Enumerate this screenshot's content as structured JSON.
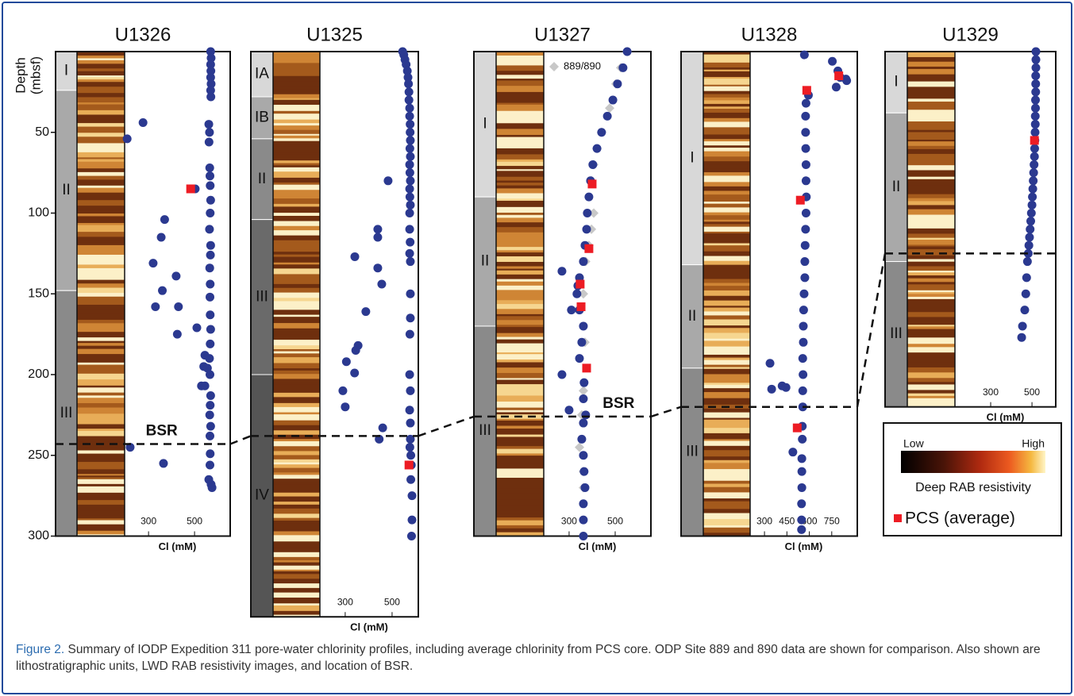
{
  "chart_data": [
    {
      "type": "scatter",
      "title": "U1326",
      "y_label_top": "Depth",
      "y_label_bottom": "(mbsf)",
      "x_label": "Cl (mM)",
      "xlim": [
        196,
        655
      ],
      "xticks": [
        300,
        500
      ],
      "ylim": [
        0,
        300
      ],
      "yticks": [
        50,
        100,
        150,
        200,
        250,
        300
      ],
      "units": [
        {
          "label": "I",
          "top": 0,
          "bottom": 24
        },
        {
          "label": "II",
          "top": 24,
          "bottom": 148
        },
        {
          "label": "III",
          "top": 148,
          "bottom": 300
        }
      ],
      "bsr_depth": 243,
      "bsr_label": "BSR",
      "series": [
        {
          "color": "#2b3990",
          "marker": "circle",
          "x": [
            570,
            572,
            570,
            571,
            570,
            572,
            570,
            571,
            276,
            207,
            562,
            565,
            563,
            566,
            567,
            568,
            503,
            570,
            568,
            370,
            565,
            355,
            570,
            569,
            320,
            566,
            420,
            568,
            360,
            567,
            330,
            430,
            568,
            510,
            570,
            425,
            568,
            545,
            565,
            540,
            556,
            567,
            530,
            545,
            570,
            568,
            566,
            570,
            567,
            220,
            568,
            365,
            567,
            562,
            572,
            576
          ],
          "values": [
            0,
            4,
            8,
            12,
            16,
            20,
            24,
            28,
            44,
            54,
            45,
            50,
            56,
            72,
            77,
            83,
            85,
            92,
            100,
            104,
            110,
            115,
            120,
            126,
            131,
            134,
            139,
            144,
            148,
            152,
            158,
            158,
            163,
            171,
            172,
            175,
            181,
            188,
            190,
            195,
            196,
            200,
            207,
            207,
            213,
            219,
            225,
            232,
            238,
            245,
            249,
            255,
            256,
            265,
            268,
            270
          ]
        },
        {
          "color": "#ed1c24",
          "marker": "square",
          "x": [
            483
          ],
          "values": [
            85
          ]
        }
      ]
    },
    {
      "type": "scatter",
      "title": "U1325",
      "x_label": "Cl (mM)",
      "xlim": [
        192,
        612
      ],
      "xticks": [
        300,
        500
      ],
      "ylim": [
        0,
        350
      ],
      "units": [
        {
          "label": "IA",
          "top": 0,
          "bottom": 28
        },
        {
          "label": "IB",
          "top": 28,
          "bottom": 54
        },
        {
          "label": "II",
          "top": 54,
          "bottom": 104
        },
        {
          "label": "III",
          "top": 104,
          "bottom": 200
        },
        {
          "label": "IV",
          "top": 200,
          "bottom": 350
        }
      ],
      "bsr_depth": 238,
      "series": [
        {
          "color": "#2b3990",
          "marker": "circle",
          "x": [
            545,
            550,
            555,
            560,
            565,
            568,
            570,
            572,
            572,
            575,
            575,
            577,
            577,
            578,
            576,
            578,
            575,
            576,
            578,
            483,
            575,
            576,
            578,
            575,
            439,
            439,
            575,
            577,
            575,
            341,
            578,
            439,
            456,
            578,
            388,
            578,
            576,
            355,
            345,
            305,
            575,
            340,
            290,
            300,
            578,
            575,
            578,
            460,
            578,
            445,
            576,
            580,
            582,
            580,
            585,
            585,
            583
          ],
          "values": [
            0,
            2,
            5,
            8,
            12,
            16,
            20,
            25,
            30,
            35,
            40,
            45,
            50,
            55,
            60,
            65,
            70,
            75,
            80,
            80,
            85,
            90,
            95,
            100,
            110,
            115,
            110,
            118,
            125,
            127,
            130,
            134,
            144,
            150,
            161,
            165,
            175,
            182,
            185,
            192,
            200,
            199,
            210,
            220,
            210,
            222,
            230,
            233,
            240,
            240,
            245,
            250,
            256,
            265,
            275,
            290,
            300
          ]
        },
        {
          "color": "#ed1c24",
          "marker": "square",
          "x": [
            572
          ],
          "values": [
            256
          ]
        }
      ]
    },
    {
      "type": "scatter",
      "title": "U1327",
      "x_label": "Cl (mM)",
      "xlim": [
        190,
        655
      ],
      "xticks": [
        300,
        500
      ],
      "ylim": [
        0,
        300
      ],
      "units": [
        {
          "label": "I",
          "top": 0,
          "bottom": 90
        },
        {
          "label": "II",
          "top": 90,
          "bottom": 170
        },
        {
          "label": "III",
          "top": 170,
          "bottom": 300
        }
      ],
      "bsr_depth": 226,
      "bsr_label": "BSR",
      "series": [
        {
          "name": "889/890",
          "color": "#c8c8c8",
          "marker": "diamond",
          "x": [
            552,
            524,
            503,
            476,
            441,
            421,
            407,
            397,
            407,
            397,
            386,
            372,
            362,
            369,
            362,
            355,
            345,
            362,
            362
          ],
          "values": [
            0,
            10,
            20,
            35,
            50,
            60,
            70,
            80,
            100,
            110,
            120,
            130,
            150,
            180,
            210,
            225,
            245,
            260,
            270
          ]
        },
        {
          "color": "#2b3990",
          "marker": "circle",
          "x": [
            552,
            534,
            510,
            490,
            466,
            441,
            421,
            403,
            393,
            386,
            379,
            376,
            369,
            362,
            269,
            345,
            338,
            334,
            310,
            345,
            362,
            355,
            345,
            269,
            365,
            362,
            300,
            372,
            362,
            355,
            362,
            365,
            369,
            362,
            362,
            362
          ],
          "values": [
            0,
            10,
            20,
            30,
            40,
            50,
            60,
            70,
            80,
            90,
            100,
            110,
            120,
            130,
            136,
            140,
            145,
            150,
            160,
            160,
            170,
            180,
            190,
            200,
            205,
            215,
            222,
            225,
            230,
            240,
            250,
            260,
            270,
            280,
            290,
            300
          ]
        },
        {
          "color": "#ed1c24",
          "marker": "square",
          "x": [
            400,
            386,
            348,
            352,
            376
          ],
          "values": [
            82,
            122,
            144,
            158,
            196
          ]
        }
      ]
    },
    {
      "type": "scatter",
      "title": "U1328",
      "x_label": "Cl (mM)",
      "xlim": [
        204,
        921
      ],
      "xticks": [
        300,
        450,
        600,
        750
      ],
      "ylim": [
        0,
        300
      ],
      "units": [
        {
          "label": "I",
          "top": 0,
          "bottom": 132
        },
        {
          "label": "II",
          "top": 132,
          "bottom": 196
        },
        {
          "label": "III",
          "top": 196,
          "bottom": 300
        }
      ],
      "bsr_depth": 220,
      "series": [
        {
          "color": "#2b3990",
          "marker": "circle",
          "x": [
            567,
            754,
            791,
            845,
            850,
            807,
            780,
            594,
            578,
            575,
            575,
            576,
            578,
            578,
            580,
            578,
            575,
            572,
            570,
            570,
            565,
            562,
            560,
            560,
            556,
            337,
            558,
            348,
            418,
            444,
            556,
            556,
            553,
            553,
            490,
            550,
            550,
            550,
            548,
            548,
            548
          ],
          "values": [
            2,
            6,
            12,
            17,
            18,
            16,
            22,
            27,
            32,
            40,
            50,
            60,
            70,
            80,
            90,
            100,
            110,
            120,
            130,
            140,
            150,
            160,
            170,
            180,
            190,
            193,
            200,
            209,
            207,
            208,
            210,
            220,
            232,
            240,
            248,
            252,
            260,
            270,
            280,
            290,
            296
          ]
        },
        {
          "color": "#ed1c24",
          "marker": "square",
          "x": [
            797,
            583,
            540,
            519
          ],
          "values": [
            15,
            24,
            92,
            233
          ]
        }
      ]
    },
    {
      "type": "scatter",
      "title": "U1329",
      "x_label": "Cl (mM)",
      "xlim": [
        127,
        615
      ],
      "xticks": [
        300,
        500
      ],
      "ylim": [
        0,
        220
      ],
      "units": [
        {
          "label": "I",
          "top": 0,
          "bottom": 38
        },
        {
          "label": "II",
          "top": 38,
          "bottom": 130
        },
        {
          "label": "III",
          "top": 130,
          "bottom": 220
        }
      ],
      "bsr_depth": 125,
      "series": [
        {
          "color": "#2b3990",
          "marker": "circle",
          "x": [
            519,
            519,
            519,
            518,
            518,
            518,
            517,
            517,
            516,
            516,
            515,
            514,
            513,
            512,
            510,
            508,
            506,
            504,
            502,
            500,
            497,
            494,
            491,
            488,
            485,
            482,
            478,
            474,
            470,
            465,
            454,
            450
          ],
          "values": [
            0,
            5,
            10,
            15,
            20,
            25,
            30,
            35,
            40,
            45,
            50,
            55,
            60,
            65,
            70,
            75,
            80,
            85,
            90,
            95,
            100,
            105,
            110,
            115,
            120,
            125,
            130,
            140,
            150,
            160,
            170,
            177
          ]
        },
        {
          "color": "#ed1c24",
          "marker": "square",
          "x": [
            512
          ],
          "values": [
            55
          ]
        }
      ]
    }
  ],
  "legend": {
    "low": "Low",
    "high": "High",
    "title": "Deep RAB resistivity",
    "pcs": "PCS (average)",
    "pcs_color": "#ed1c24"
  },
  "caption": {
    "label": "Figure 2.",
    "text": " Summary of IODP Expedition 311 pore-water chlorinity profiles, including average chlorinity from PCS core. ODP Site 889 and 890 data are shown for comparison. Also shown are lithostratigraphic units, LWD RAB resistivity images, and location of BSR."
  }
}
